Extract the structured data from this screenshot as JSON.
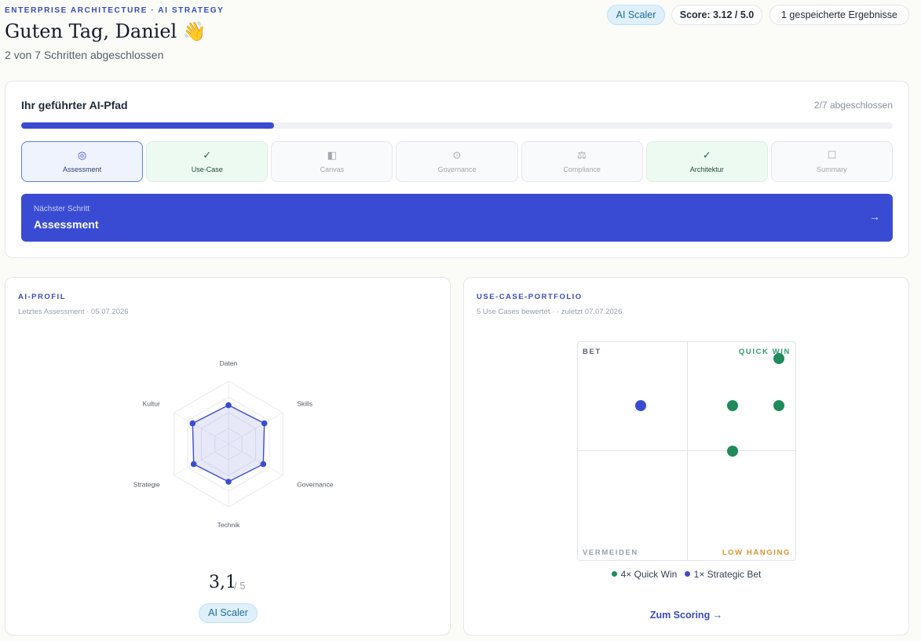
{
  "header": {
    "eyebrow": "ENTERPRISE ARCHITECTURE · AI STRATEGY",
    "greeting": "Guten Tag, Daniel 👋",
    "progress_text": "2 von 7 Schritten abgeschlossen",
    "badge_level": "AI Scaler",
    "badge_score": "Score: 3.12 / 5.0",
    "badge_saved": "1  gespeicherte Ergebnisse"
  },
  "path": {
    "title": "Ihr geführter AI-Pfad",
    "count": "2/7 abgeschlossen",
    "progress_fraction": 0.29,
    "steps": [
      {
        "label": "Assessment",
        "icon": "◎",
        "state": "active"
      },
      {
        "label": "Use-Case",
        "icon": "✓",
        "state": "done"
      },
      {
        "label": "Canvas",
        "icon": "◧",
        "state": "todo"
      },
      {
        "label": "Governance",
        "icon": "⊙",
        "state": "todo"
      },
      {
        "label": "Compliance",
        "icon": "⚖",
        "state": "todo"
      },
      {
        "label": "Architektur",
        "icon": "✓",
        "state": "done"
      },
      {
        "label": "Summary",
        "icon": "☐",
        "state": "todo"
      }
    ],
    "next": {
      "label": "Nächster Schritt",
      "title": "Assessment",
      "arrow": "→"
    }
  },
  "profile": {
    "eyebrow": "AI-PROFIL",
    "meta": "Letztes Assessment · 05.07.2026",
    "axes": [
      {
        "label": "Daten",
        "value": 3.1
      },
      {
        "label": "Skills",
        "value": 3.3
      },
      {
        "label": "Governance",
        "value": 3.2
      },
      {
        "label": "Technik",
        "value": 3.0
      },
      {
        "label": "Strategie",
        "value": 3.2
      },
      {
        "label": "Kultur",
        "value": 3.3
      }
    ],
    "max": 5,
    "score": "3,1",
    "score_max": "/ 5",
    "level": "AI Scaler",
    "accent": "#3b4bd1"
  },
  "portfolio": {
    "eyebrow": "USE-CASE-PORTFOLIO",
    "meta": "5 Use Cases bewertet · · zuletzt 07.07.2026",
    "quadrants": {
      "top_left": "BET",
      "top_right": "QUICK WIN",
      "bottom_left": "VERMEIDEN",
      "bottom_right": "LOW HANGING"
    },
    "points": [
      {
        "category": "strategic_bet",
        "x": 0.29,
        "y": 0.29,
        "color": "#3b4bd1"
      },
      {
        "category": "quick_win",
        "x": 0.925,
        "y": 0.075,
        "color": "#1f8a5c"
      },
      {
        "category": "quick_win",
        "x": 0.71,
        "y": 0.29,
        "color": "#1f8a5c"
      },
      {
        "category": "quick_win",
        "x": 0.925,
        "y": 0.29,
        "color": "#1f8a5c"
      },
      {
        "category": "quick_win",
        "x": 0.71,
        "y": 0.5,
        "color": "#1f8a5c"
      }
    ],
    "legend": [
      {
        "label": "4× Quick Win",
        "color": "#1f8a5c"
      },
      {
        "label": "1× Strategic Bet",
        "color": "#3b4bd1"
      }
    ],
    "link": "Zum Scoring →"
  }
}
